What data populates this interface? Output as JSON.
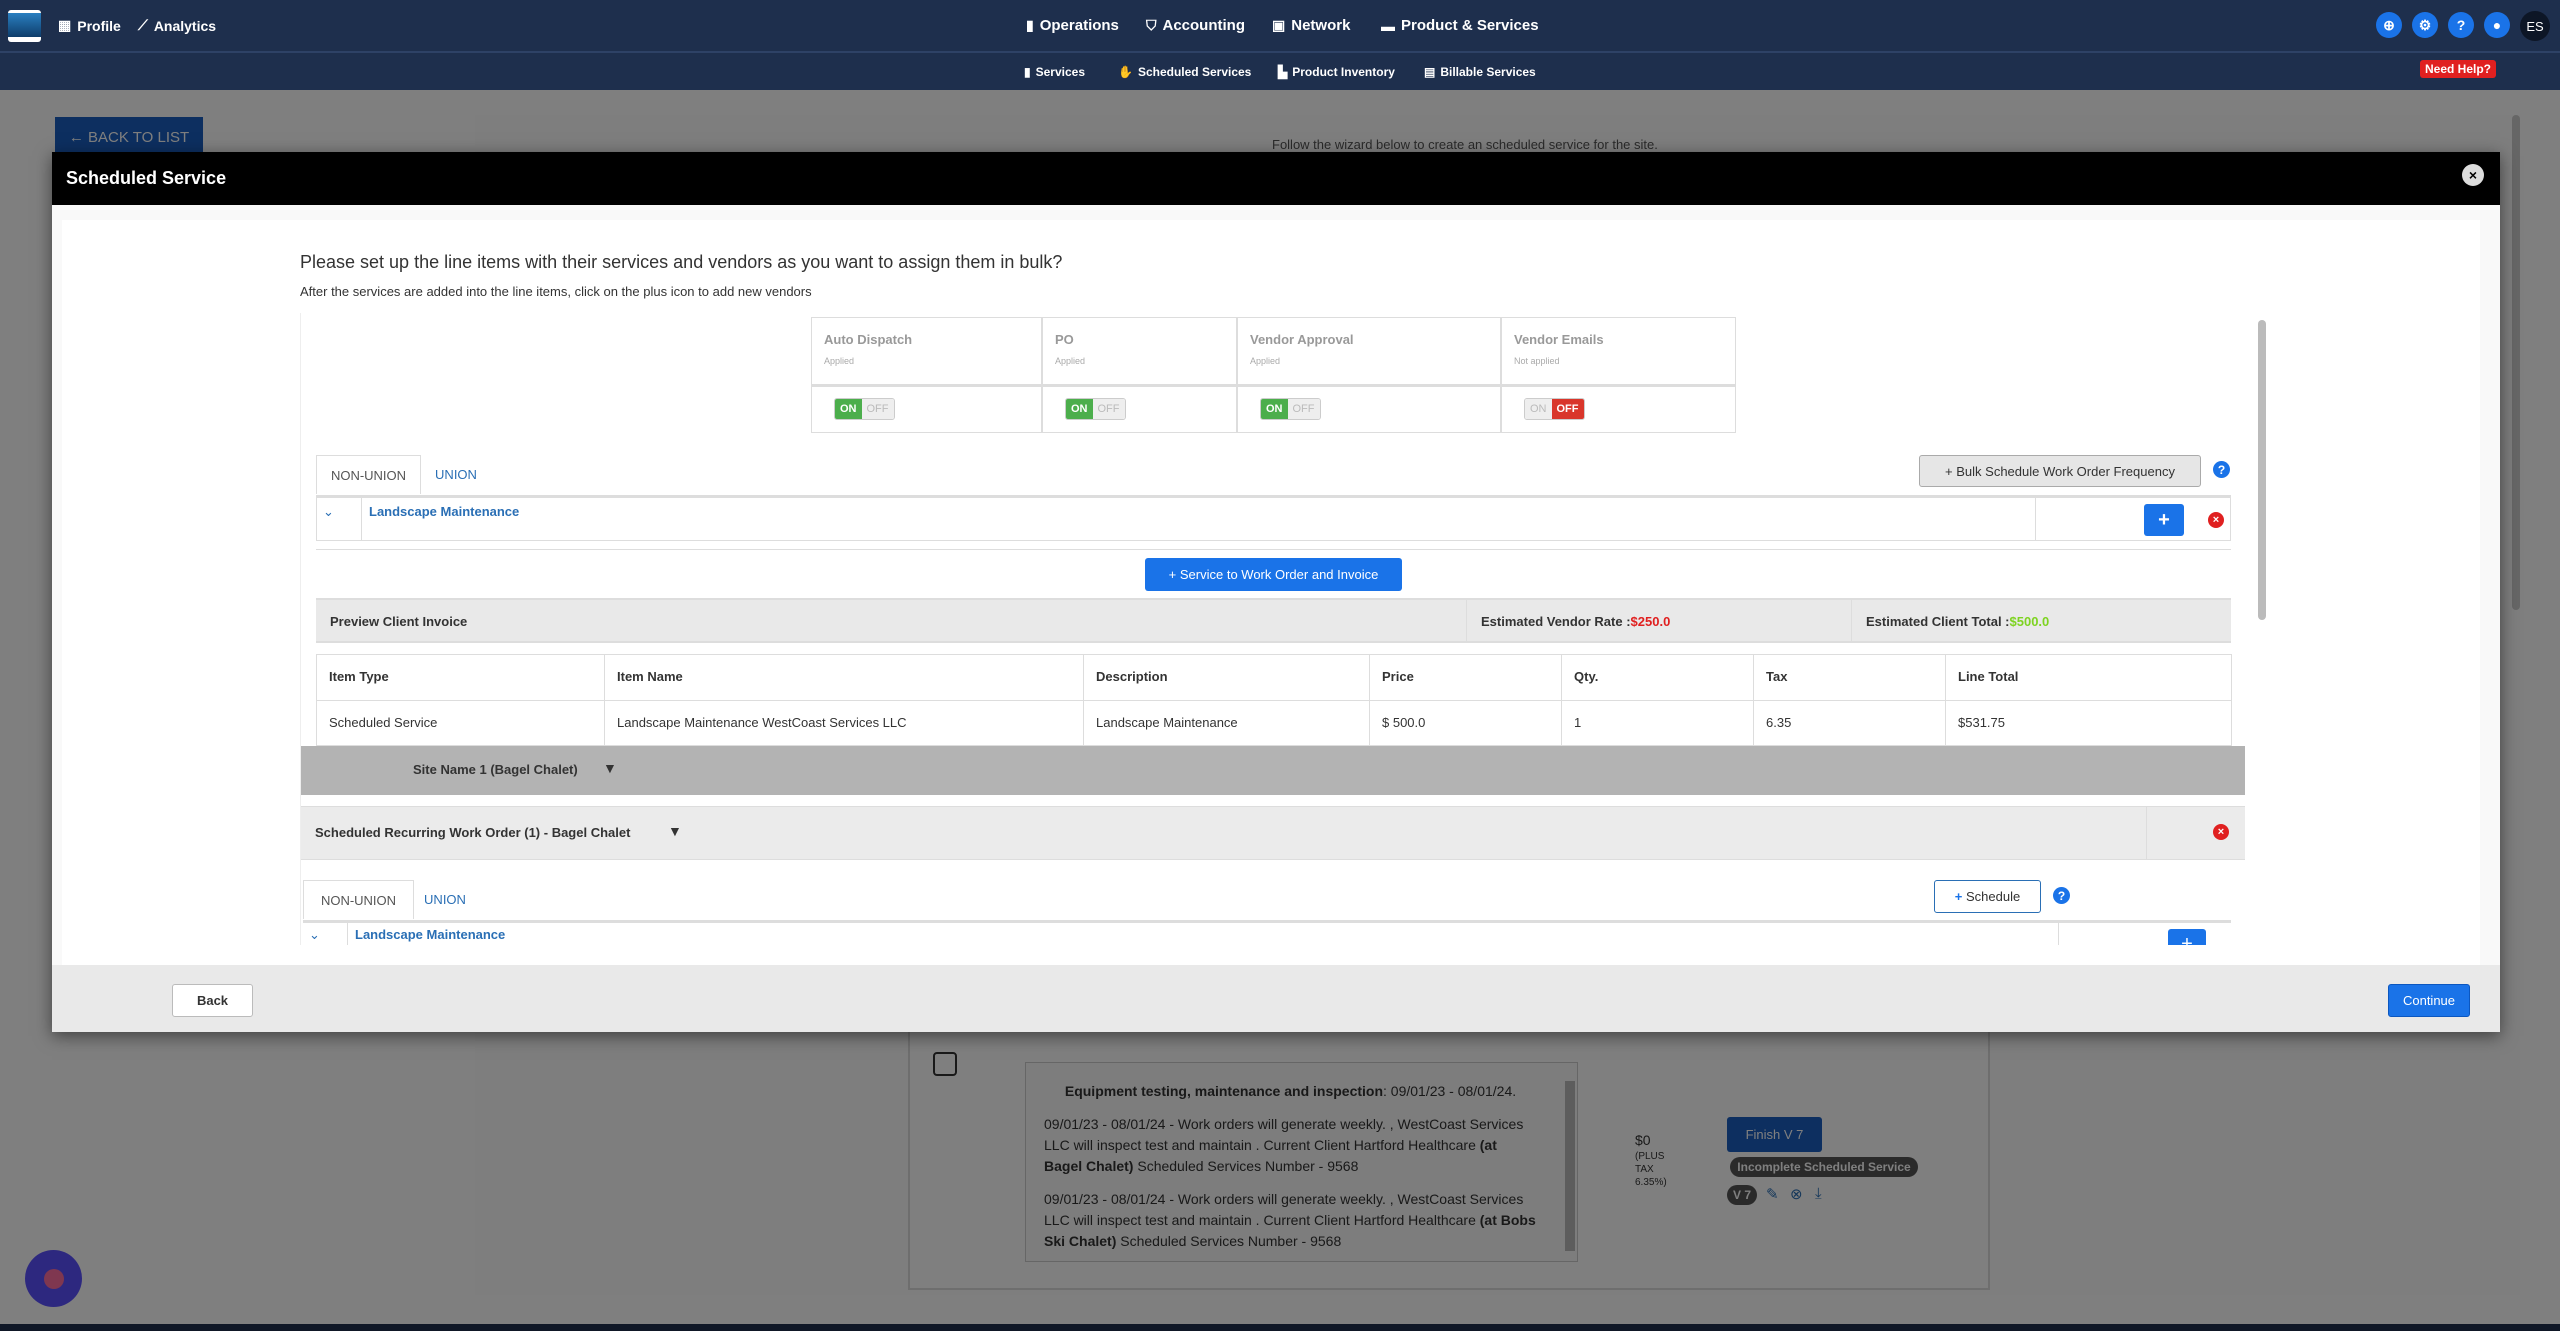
{
  "nav": {
    "left": [
      {
        "icon": "building-icon",
        "label": "Profile"
      },
      {
        "icon": "chart-line-icon",
        "label": "Analytics"
      }
    ],
    "center": [
      {
        "icon": "clipboard-icon",
        "label": "Operations"
      },
      {
        "icon": "dollar-shield-icon",
        "label": "Accounting"
      },
      {
        "icon": "network-icon",
        "label": "Network"
      },
      {
        "icon": "briefcase-icon",
        "label": "Product & Services"
      }
    ],
    "sub": [
      {
        "icon": "medkit-icon",
        "label": "Services"
      },
      {
        "icon": "handshake-icon",
        "label": "Scheduled Services"
      },
      {
        "icon": "inventory-icon",
        "label": "Product Inventory"
      },
      {
        "icon": "file-chart-icon",
        "label": "Billable Services"
      }
    ],
    "need_help": "Need Help?",
    "avatar": "ES",
    "accent": "#1a73e8",
    "bg": "#1e2f4d"
  },
  "background": {
    "back_to_list": "BACK TO LIST",
    "wizard_text": "Follow the wizard below to create an scheduled service for the site.",
    "desc_title": "Equipment testing, maintenance and inspection",
    "desc_dates": ": 09/01/23 - 08/01/24.",
    "p1a": "09/01/23 - 08/01/24 - Work orders will generate weekly. , WestCoast Services LLC will inspect test and maintain . Current Client Hartford Healthcare ",
    "p1b": "(at Bagel Chalet)",
    "p1c": " Scheduled Services Number - 9568",
    "p2a": "09/01/23 - 08/01/24 - Work orders will generate weekly. , WestCoast Services LLC will inspect test and maintain . Current Client Hartford Healthcare ",
    "p2b": "(at Bobs Ski Chalet)",
    "p2c": " Scheduled Services Number - 9568",
    "price": "$0",
    "plus_tax": "(PLUS TAX 6.35%)",
    "finish": "Finish V 7",
    "status": "Incomplete Scheduled Service",
    "version": "V 7"
  },
  "modal": {
    "title": "Scheduled Service",
    "heading": "Please set up the line items with their services and vendors as you want to assign them in bulk?",
    "subheading": "After the services are added into the line items, click on the plus icon to add new vendors",
    "toggles": [
      {
        "label": "Auto Dispatch",
        "status": "Applied",
        "on": true
      },
      {
        "label": "PO",
        "status": "Applied",
        "on": true
      },
      {
        "label": "Vendor Approval",
        "status": "Applied",
        "on": true
      },
      {
        "label": "Vendor Emails",
        "status": "Not applied",
        "on": false
      }
    ],
    "on_label": "ON",
    "off_label": "OFF",
    "tabs": [
      "NON-UNION",
      "UNION"
    ],
    "active_tab": "NON-UNION",
    "bulk_button": "Bulk Schedule Work Order Frequency",
    "line_item": "Landscape Maintenance",
    "service_button": "Service to Work Order and Invoice",
    "preview": "Preview Client Invoice",
    "vendor_rate_label": "Estimated Vendor Rate :",
    "vendor_rate": "$250.0",
    "client_total_label": "Estimated Client Total :",
    "client_total": "$500.0",
    "table": {
      "headers": [
        "Item Type",
        "Item Name",
        "Description",
        "Price",
        "Qty.",
        "Tax",
        "Line Total"
      ],
      "rows": [
        [
          "Scheduled Service",
          "Landscape Maintenance WestCoast Services LLC",
          "Landscape Maintenance",
          "$ 500.0",
          "1",
          "6.35",
          "$531.75"
        ]
      ]
    },
    "site_name": "Site Name 1 (Bagel Chalet)",
    "recurring": "Scheduled Recurring Work Order (1) - Bagel Chalet",
    "schedule_button": "Schedule",
    "line_item2": "Landscape Maintenance",
    "back": "Back",
    "continue": "Continue"
  }
}
